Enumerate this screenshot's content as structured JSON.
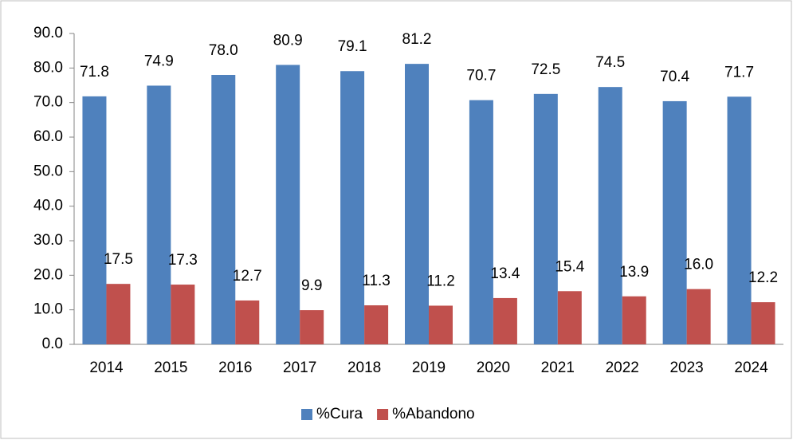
{
  "chart_data": {
    "type": "bar",
    "categories": [
      "2014",
      "2015",
      "2016",
      "2017",
      "2018",
      "2019",
      "2020",
      "2021",
      "2022",
      "2023",
      "2024"
    ],
    "series": [
      {
        "name": "%Cura",
        "color": "#4f81bd",
        "values": [
          71.8,
          74.9,
          78.0,
          80.9,
          79.1,
          81.2,
          70.7,
          72.5,
          74.5,
          70.4,
          71.7
        ],
        "value_labels": [
          "71.8",
          "74.9",
          "78.0",
          "80.9",
          "79.1",
          "81.2",
          "70.7",
          "72.5",
          "74.5",
          "70.4",
          "71.7"
        ]
      },
      {
        "name": "%Abandono",
        "color": "#c0504d",
        "values": [
          17.5,
          17.3,
          12.7,
          9.9,
          11.3,
          11.2,
          13.4,
          15.4,
          13.9,
          16.0,
          12.2
        ],
        "value_labels": [
          "17.5",
          "17.3",
          "12.7",
          "9.9",
          "11.3",
          "11.2",
          "13.4",
          "15.4",
          "13.9",
          "16.0",
          "12.2"
        ]
      }
    ],
    "ylim": [
      0,
      90
    ],
    "yticks": [
      {
        "value": 0,
        "label": "0.0"
      },
      {
        "value": 10,
        "label": "10.0"
      },
      {
        "value": 20,
        "label": "20.0"
      },
      {
        "value": 30,
        "label": "30.0"
      },
      {
        "value": 40,
        "label": "40.0"
      },
      {
        "value": 50,
        "label": "50.0"
      },
      {
        "value": 60,
        "label": "60.0"
      },
      {
        "value": 70,
        "label": "70.0"
      },
      {
        "value": 80,
        "label": "80.0"
      },
      {
        "value": 90,
        "label": "90.0"
      }
    ],
    "legend": "bottom"
  }
}
